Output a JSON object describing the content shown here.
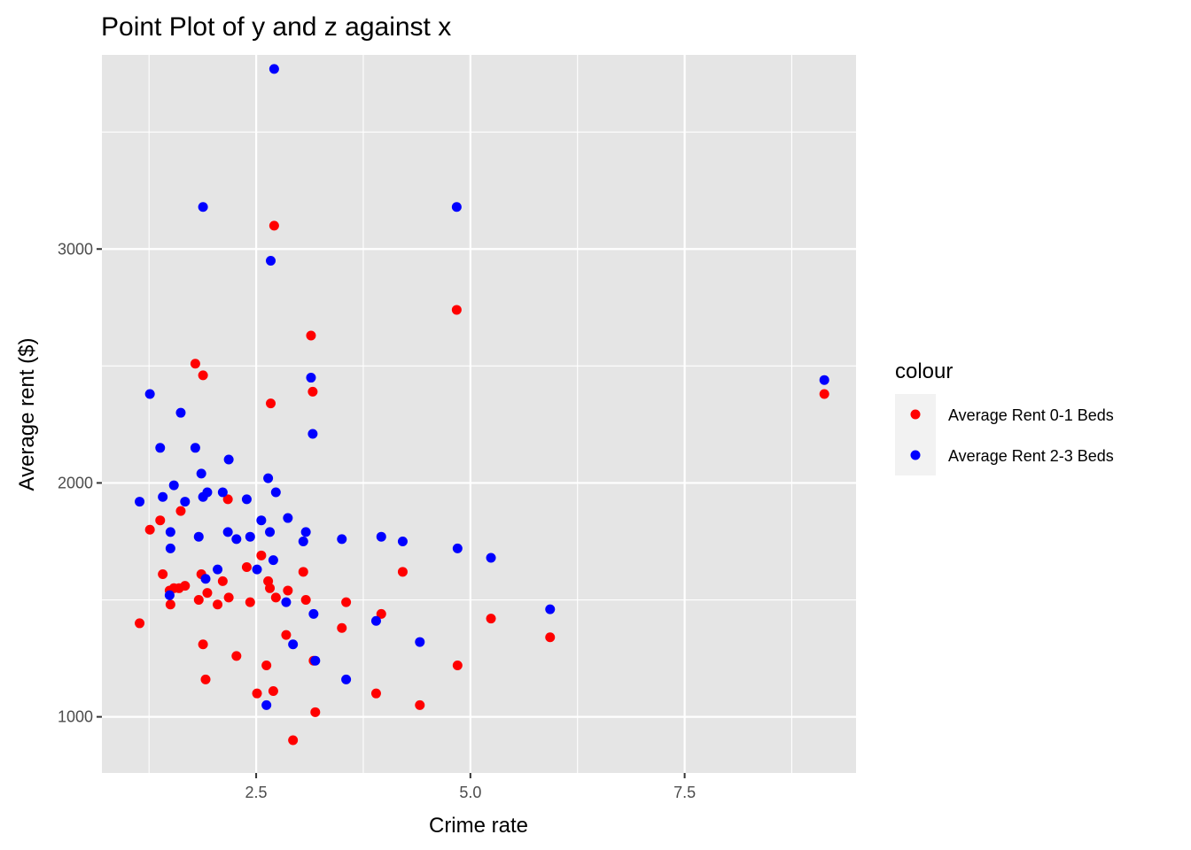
{
  "chart_data": {
    "type": "scatter",
    "title": "Point Plot of y and z against x",
    "xlabel": "Crime rate",
    "ylabel": "Average rent ($)",
    "xlim": [
      0.7,
      9.5
    ],
    "ylim": [
      760,
      3830
    ],
    "x_ticks": [
      2.5,
      5.0,
      7.5
    ],
    "x_tick_labels": [
      "2.5",
      "5.0",
      "7.5"
    ],
    "y_ticks": [
      1000,
      2000,
      3000
    ],
    "y_tick_labels": [
      "1000",
      "2000",
      "3000"
    ],
    "grid": true,
    "background": "#e5e5e5",
    "legend": {
      "title": "colour",
      "position": "right"
    },
    "series": [
      {
        "name": "Average Rent 0-1 Beds",
        "color": "#ff0000",
        "x": [
          1.14,
          1.26,
          1.38,
          1.41,
          1.49,
          1.5,
          1.54,
          1.6,
          1.62,
          1.67,
          1.79,
          1.83,
          1.86,
          1.88,
          1.88,
          1.91,
          1.93,
          2.05,
          2.11,
          2.17,
          2.18,
          2.27,
          2.39,
          2.43,
          2.51,
          2.56,
          2.62,
          2.64,
          2.66,
          2.67,
          2.7,
          2.71,
          2.73,
          2.85,
          2.87,
          2.93,
          3.05,
          3.08,
          3.14,
          3.16,
          3.17,
          3.19,
          3.5,
          3.55,
          3.9,
          3.96,
          4.21,
          4.41,
          4.84,
          4.85,
          5.24,
          5.93,
          9.13
        ],
        "y": [
          1400,
          1800,
          1840,
          1610,
          1540,
          1480,
          1550,
          1550,
          1880,
          1560,
          2510,
          1500,
          1610,
          2460,
          1310,
          1160,
          1530,
          1480,
          1580,
          1930,
          1510,
          1260,
          1640,
          1490,
          1100,
          1690,
          1220,
          1580,
          1550,
          2340,
          1110,
          3100,
          1510,
          1350,
          1540,
          900,
          1620,
          1500,
          2630,
          2390,
          1240,
          1020,
          1380,
          1490,
          1100,
          1440,
          1620,
          1050,
          2740,
          1220,
          1420,
          1340,
          2380
        ]
      },
      {
        "name": "Average Rent 2-3 Beds",
        "color": "#0000ff",
        "x": [
          1.14,
          1.26,
          1.38,
          1.41,
          1.49,
          1.5,
          1.5,
          1.54,
          1.62,
          1.67,
          1.79,
          1.83,
          1.86,
          1.88,
          1.88,
          1.91,
          1.93,
          2.05,
          2.11,
          2.17,
          2.18,
          2.27,
          2.39,
          2.43,
          2.51,
          2.56,
          2.62,
          2.64,
          2.66,
          2.67,
          2.7,
          2.71,
          2.73,
          2.85,
          2.87,
          2.93,
          3.05,
          3.08,
          3.14,
          3.16,
          3.17,
          3.19,
          3.5,
          3.55,
          3.9,
          3.96,
          4.21,
          4.41,
          4.84,
          4.85,
          5.24,
          5.93,
          9.13
        ],
        "y": [
          1920,
          2380,
          2150,
          1940,
          1520,
          1790,
          1720,
          1990,
          2300,
          1920,
          2150,
          1770,
          2040,
          1940,
          3180,
          1590,
          1960,
          1630,
          1960,
          1790,
          2100,
          1760,
          1930,
          1770,
          1630,
          1840,
          1050,
          2020,
          1790,
          2950,
          1670,
          3770,
          1960,
          1490,
          1850,
          1310,
          1750,
          1790,
          2450,
          2210,
          1440,
          1240,
          1760,
          1160,
          1410,
          1770,
          1750,
          1320,
          3180,
          1720,
          1680,
          1460,
          2440
        ]
      }
    ]
  }
}
